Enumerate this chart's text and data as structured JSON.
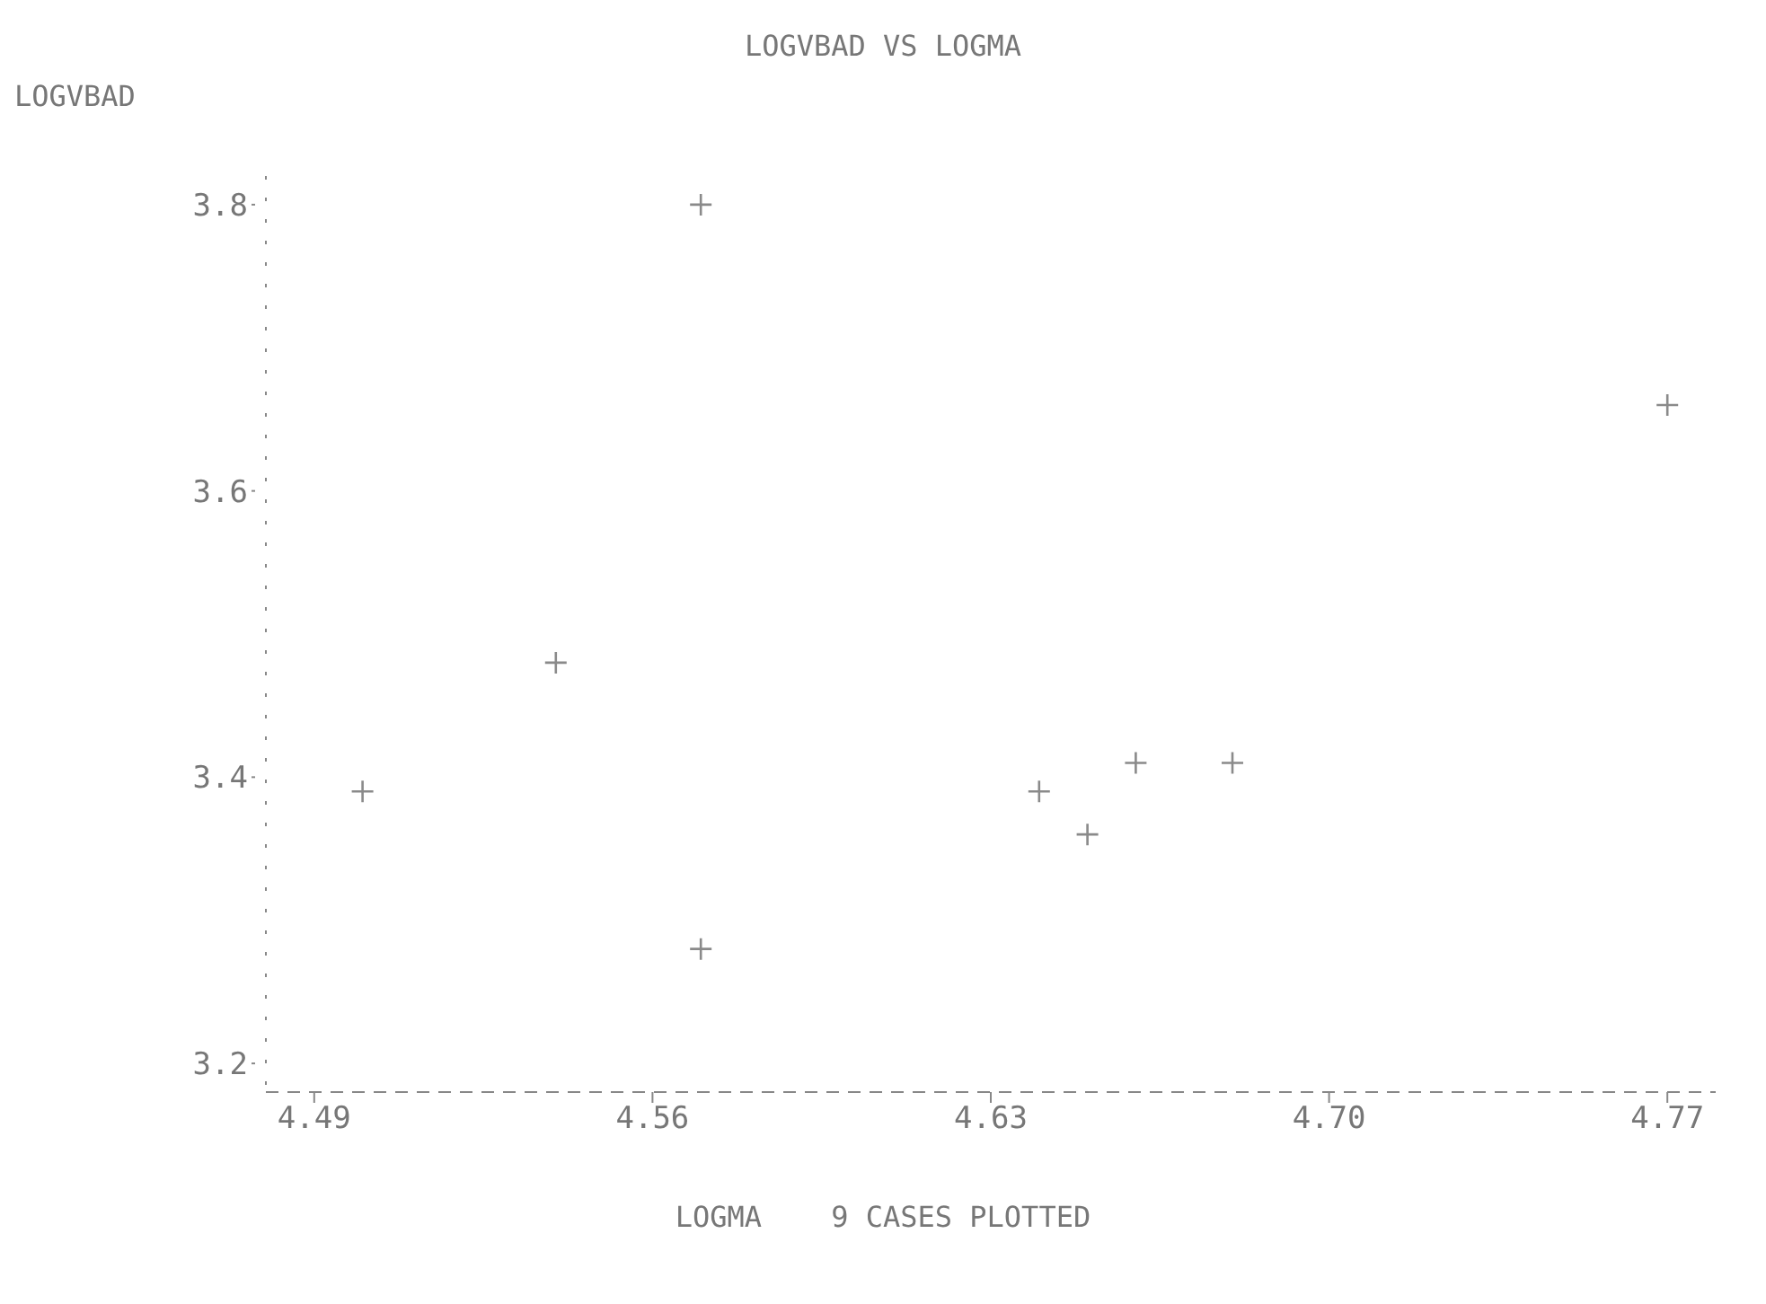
{
  "chart_data": {
    "type": "scatter",
    "title": "LOGVBAD VS LOGMA",
    "xlabel": "LOGMA",
    "ylabel": "LOGVBAD",
    "annotations": [
      "9 CASES PLOTTED"
    ],
    "x": [
      4.57,
      4.77,
      4.54,
      4.5,
      4.66,
      4.68,
      4.64,
      4.65,
      4.57
    ],
    "values": [
      3.8,
      3.66,
      3.48,
      3.39,
      3.41,
      3.41,
      3.39,
      3.36,
      3.28
    ],
    "color": "#8a8a8a",
    "marker": "cross",
    "grid": false,
    "xlim": [
      4.48,
      4.78
    ],
    "xticks": [
      4.49,
      4.56,
      4.63,
      {
        "value": 4.7,
        "label": "4.70"
      },
      4.77
    ],
    "ylim": [
      3.18,
      3.82
    ],
    "yticks": [
      3.2,
      3.4,
      3.6,
      3.8
    ]
  }
}
